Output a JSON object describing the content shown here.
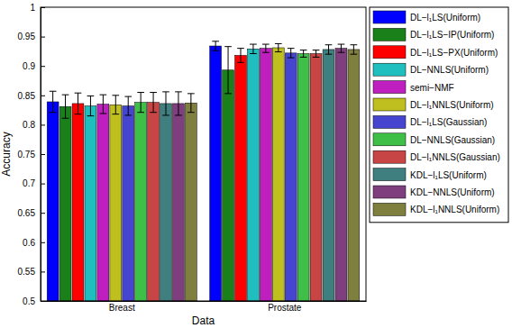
{
  "chart_data": {
    "type": "bar",
    "x_label": "Data",
    "y_label": "Accuracy",
    "categories": [
      "Breast",
      "Prostate"
    ],
    "ylim": [
      0.5,
      1
    ],
    "yticks": [
      0.5,
      0.55,
      0.6,
      0.65,
      0.7,
      0.75,
      0.8,
      0.85,
      0.9,
      0.95,
      1
    ],
    "legend": "top-right",
    "series": [
      {
        "name": "DL−l₁LS(Uniform)",
        "color": "#0000ff",
        "values": [
          0.839,
          0.934
        ],
        "errors": [
          0.018,
          0.008
        ]
      },
      {
        "name": "DL−l₁LS−IP(Uniform)",
        "color": "#1a801a",
        "values": [
          0.831,
          0.893
        ],
        "errors": [
          0.02,
          0.04
        ]
      },
      {
        "name": "DL−l₁LS−PX(Uniform)",
        "color": "#ff0000",
        "values": [
          0.836,
          0.918
        ],
        "errors": [
          0.018,
          0.012
        ]
      },
      {
        "name": "DL−NNLS(Uniform)",
        "color": "#1fbfbf",
        "values": [
          0.832,
          0.929
        ],
        "errors": [
          0.017,
          0.008
        ]
      },
      {
        "name": "semi−NMF",
        "color": "#bf1fbf",
        "values": [
          0.835,
          0.93
        ],
        "errors": [
          0.016,
          0.007
        ]
      },
      {
        "name": "DL−l₁NNLS(Uniform)",
        "color": "#bfbf1f",
        "values": [
          0.834,
          0.931
        ],
        "errors": [
          0.016,
          0.007
        ]
      },
      {
        "name": "DL−l₁LS(Gaussian)",
        "color": "#4545d0",
        "values": [
          0.832,
          0.922
        ],
        "errors": [
          0.016,
          0.008
        ]
      },
      {
        "name": "DL−NNLS(Gaussian)",
        "color": "#40bf48",
        "values": [
          0.838,
          0.921
        ],
        "errors": [
          0.017,
          0.006
        ]
      },
      {
        "name": "DL−l₁NNLS(Gaussian)",
        "color": "#c84545",
        "values": [
          0.838,
          0.921
        ],
        "errors": [
          0.017,
          0.006
        ]
      },
      {
        "name": "KDL−l₁LS(Uniform)",
        "color": "#3f7f7f",
        "values": [
          0.836,
          0.928
        ],
        "errors": [
          0.02,
          0.008
        ]
      },
      {
        "name": "KDL−NNLS(Uniform)",
        "color": "#7f3f7f",
        "values": [
          0.836,
          0.93
        ],
        "errors": [
          0.02,
          0.007
        ]
      },
      {
        "name": "KDL−l₁NNLS(Uniform)",
        "color": "#7f7f3f",
        "values": [
          0.837,
          0.928
        ],
        "errors": [
          0.016,
          0.008
        ]
      }
    ]
  }
}
